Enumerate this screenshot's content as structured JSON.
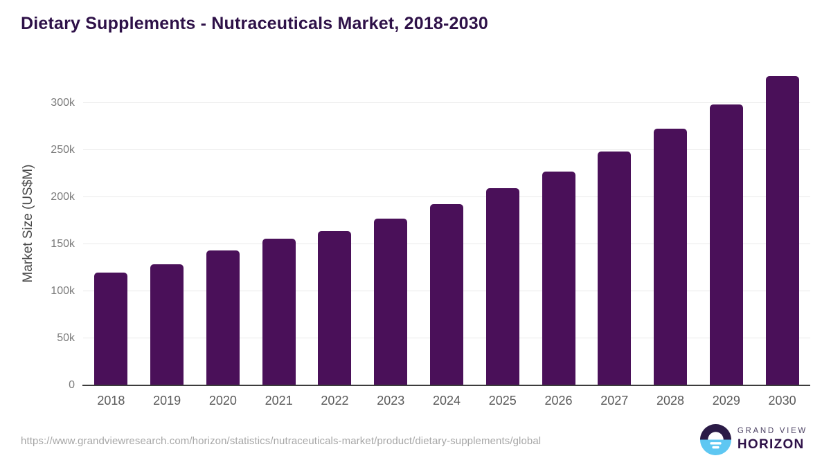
{
  "page": {
    "title": "Dietary Supplements - Nutraceuticals Market, 2018-2030"
  },
  "chart_data": {
    "type": "bar",
    "title": "Dietary Supplements - Nutraceuticals Market, 2018-2030",
    "xlabel": "",
    "ylabel": "Market Size (US$M)",
    "categories": [
      "2018",
      "2019",
      "2020",
      "2021",
      "2022",
      "2023",
      "2024",
      "2025",
      "2026",
      "2027",
      "2028",
      "2029",
      "2030"
    ],
    "values": [
      119900,
      128700,
      143400,
      155700,
      164000,
      176800,
      192200,
      209300,
      227200,
      248400,
      272700,
      298200,
      328000
    ],
    "ylim": [
      0,
      343000
    ],
    "yticks": [
      {
        "value": 0,
        "label": "0"
      },
      {
        "value": 50000,
        "label": "50k"
      },
      {
        "value": 100000,
        "label": "100k"
      },
      {
        "value": 150000,
        "label": "150k"
      },
      {
        "value": 200000,
        "label": "200k"
      },
      {
        "value": 250000,
        "label": "250k"
      },
      {
        "value": 300000,
        "label": "300k"
      }
    ],
    "grid": "horizontal",
    "legend": "none",
    "bar_color": "#4a1059"
  },
  "colors": {
    "title_text": "#2e1148",
    "bar_fill": "#4a1059",
    "gridline": "#e9e9e9",
    "axis_line": "#3c3c3c",
    "y_tick_text": "#7b7b7b",
    "x_tick_text": "#5a5a5a",
    "url_text": "#a6a6a6",
    "logo_purple": "#2b1b47",
    "logo_blue": "#5ec7f2"
  },
  "footer": {
    "source_url": "https://www.grandviewresearch.com/horizon/statistics/nutraceuticals-market/product/dietary-supplements/global",
    "logo_text_top": "GRAND VIEW",
    "logo_text_bottom": "HORIZON"
  }
}
